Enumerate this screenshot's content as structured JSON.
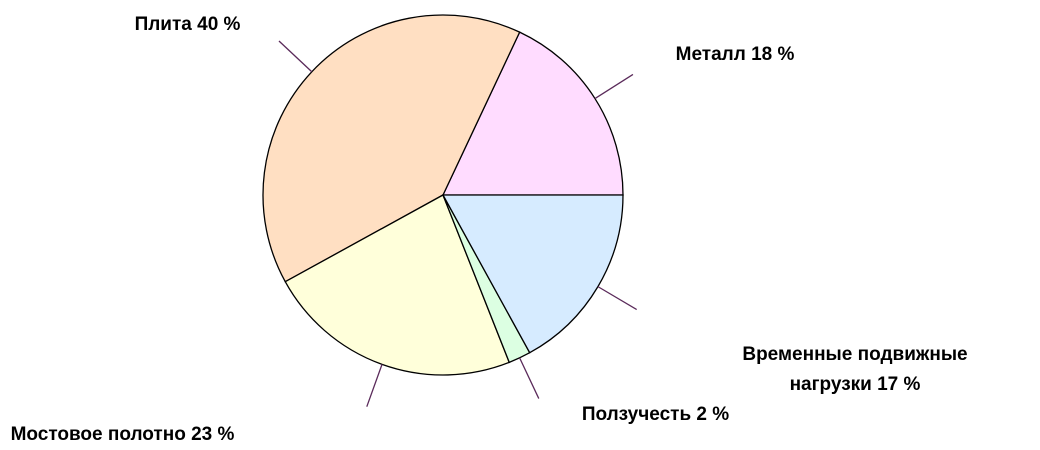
{
  "chart_data": {
    "type": "pie",
    "categories": [
      "Металл",
      "Плита",
      "Мостовое полотно",
      "Ползучесть",
      "Временные подвижные нагрузки"
    ],
    "values": [
      18,
      40,
      23,
      2,
      17
    ],
    "value_labels": [
      "18 %",
      "40 %",
      "23 %",
      "2 %",
      "17 %"
    ],
    "colors": [
      "#ffdcff",
      "#ffdfc2",
      "#ffffda",
      "#dcffe2",
      "#d6ebff"
    ]
  }
}
